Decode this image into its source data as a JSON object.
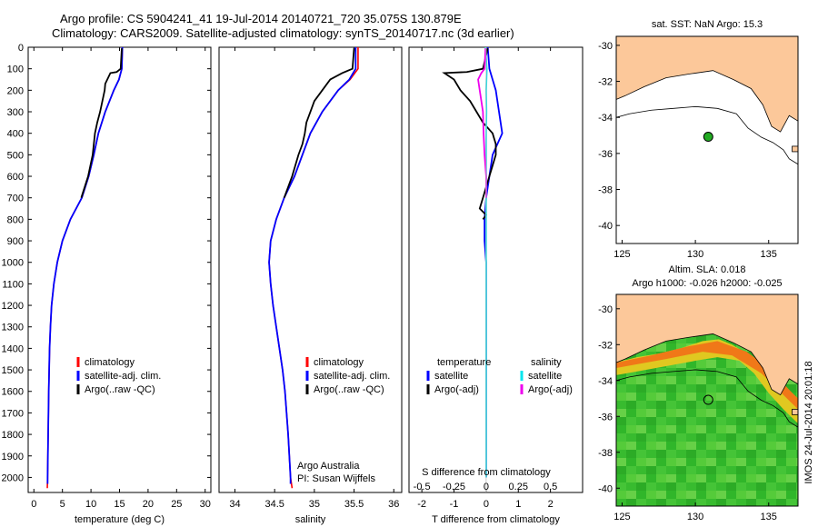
{
  "header": {
    "title_line1": "Argo profile: CS 5904241_41 19-Jul-2014 20140721_720 35.075S 130.879E",
    "title_line2": "Climatology: CARS2009. Satellite-adjusted climatology: synTS_20140717.nc (3d earlier)"
  },
  "colors": {
    "climatology": "#ff0000",
    "satellite": "#0000ff",
    "argo": "#000000",
    "sal_satellite": "#00e5ee",
    "sal_argo": "#ee00ee",
    "land": "#fcc89a"
  },
  "chart_data": [
    {
      "type": "line",
      "name": "temperature",
      "xlabel": "temperature (deg C)",
      "xlim": [
        -1,
        31
      ],
      "ylim": [
        2070,
        0
      ],
      "xticks": [
        0,
        5,
        10,
        15,
        20,
        25,
        30
      ],
      "yticks": [
        0,
        100,
        200,
        300,
        400,
        500,
        600,
        700,
        800,
        900,
        1000,
        1100,
        1200,
        1300,
        1400,
        1500,
        1600,
        1700,
        1800,
        1900,
        2000
      ],
      "legend": [
        "climatology",
        "satellite-adj. clim.",
        "Argo(..raw -QC)"
      ],
      "series": [
        {
          "name": "climatology",
          "color": "#ff0000",
          "depth": [
            0,
            100,
            150,
            200,
            300,
            400,
            500,
            600,
            700,
            800,
            900,
            1000,
            1100,
            1200,
            1300,
            1400,
            1600,
            1800,
            2000,
            2050
          ],
          "values": [
            15.5,
            15.4,
            14.9,
            14.0,
            12.5,
            11.3,
            10.5,
            9.6,
            8.4,
            6.4,
            5.0,
            4.1,
            3.5,
            3.1,
            2.9,
            2.75,
            2.6,
            2.5,
            2.4,
            2.35
          ]
        },
        {
          "name": "satellite-adj. clim.",
          "color": "#0000ff",
          "depth": [
            0,
            100,
            150,
            200,
            300,
            400,
            500,
            600,
            700,
            800,
            900,
            1000,
            1100,
            1200,
            1300,
            1400,
            1600,
            1800,
            2000,
            2030
          ],
          "values": [
            15.5,
            15.4,
            14.9,
            14.0,
            12.5,
            11.3,
            10.5,
            9.6,
            8.4,
            6.4,
            5.0,
            4.1,
            3.5,
            3.1,
            2.9,
            2.75,
            2.6,
            2.5,
            2.4,
            2.4
          ]
        },
        {
          "name": "Argo(..raw -QC)",
          "color": "#000000",
          "depth": [
            5,
            100,
            115,
            120,
            170,
            200,
            250,
            300,
            350,
            400,
            500,
            600,
            700
          ],
          "values": [
            15.4,
            15.2,
            14.5,
            13.4,
            12.5,
            12.4,
            12.0,
            11.6,
            11.1,
            10.7,
            10.3,
            9.5,
            8.3
          ]
        }
      ]
    },
    {
      "type": "line",
      "name": "salinity",
      "xlabel": "salinity",
      "xlim": [
        33.8,
        36.1
      ],
      "ylim": [
        2070,
        0
      ],
      "xticks": [
        34,
        34.5,
        35,
        35.5,
        36
      ],
      "legend": [
        "climatology",
        "satellite-adj. clim.",
        "Argo(..raw -QC)"
      ],
      "annotation_line1": "Argo Australia",
      "annotation_line2": "PI: Susan Wijffels",
      "series": [
        {
          "name": "climatology",
          "color": "#ff0000",
          "depth": [
            0,
            100,
            150,
            200,
            300,
            400,
            500,
            600,
            700,
            800,
            900,
            1000,
            1100,
            1200,
            1300,
            1400,
            1500,
            1600,
            1800,
            2000,
            2050
          ],
          "values": [
            35.55,
            35.55,
            35.45,
            35.3,
            35.1,
            34.95,
            34.85,
            34.75,
            34.62,
            34.52,
            34.45,
            34.43,
            34.45,
            34.48,
            34.52,
            34.56,
            34.6,
            34.63,
            34.67,
            34.7,
            34.72
          ]
        },
        {
          "name": "satellite-adj. clim.",
          "color": "#0000ff",
          "depth": [
            0,
            100,
            150,
            200,
            300,
            400,
            500,
            600,
            700,
            800,
            900,
            1000,
            1100,
            1200,
            1300,
            1400,
            1500,
            1600,
            1800,
            2000,
            2030
          ],
          "values": [
            35.52,
            35.52,
            35.44,
            35.3,
            35.1,
            34.95,
            34.85,
            34.75,
            34.62,
            34.52,
            34.45,
            34.43,
            34.45,
            34.48,
            34.52,
            34.56,
            34.6,
            34.63,
            34.67,
            34.7,
            34.7
          ]
        },
        {
          "name": "Argo(..raw -QC)",
          "color": "#000000",
          "depth": [
            5,
            100,
            120,
            150,
            200,
            250,
            300,
            350,
            400,
            450,
            500,
            600,
            700
          ],
          "values": [
            35.5,
            35.48,
            35.35,
            35.2,
            35.1,
            35.0,
            34.95,
            34.9,
            34.88,
            34.85,
            34.8,
            34.72,
            34.62
          ]
        }
      ]
    },
    {
      "type": "line",
      "name": "differences",
      "xlabel": "T difference from climatology",
      "xlabel_top": "S difference from climatology",
      "xlim": [
        -2.4,
        3.0
      ],
      "ylim": [
        2070,
        0
      ],
      "xticks": [
        -2,
        -1,
        0,
        1,
        2
      ],
      "xticks_s": [
        -0.5,
        -0.25,
        0,
        0.25,
        0.5
      ],
      "legend_temperature": [
        "temperature",
        "satellite",
        "Argo(-adj)"
      ],
      "legend_salinity": [
        "salinity",
        "satellite",
        "Argo(-adj)"
      ],
      "series": [
        {
          "name": "T satellite",
          "color": "#0000ff",
          "depth": [
            0,
            100,
            150,
            200,
            300,
            400,
            500,
            600,
            700,
            800,
            900,
            1000,
            1200,
            1400,
            1600,
            1800,
            2000
          ],
          "values": [
            0.05,
            0.1,
            0.2,
            0.3,
            0.4,
            0.5,
            0.2,
            0.1,
            0.0,
            -0.05,
            -0.05,
            0.0,
            0.0,
            0.0,
            0.0,
            0.0,
            0.0
          ]
        },
        {
          "name": "T Argo(-adj)",
          "color": "#000000",
          "depth": [
            5,
            100,
            115,
            120,
            150,
            200,
            250,
            300,
            350,
            400,
            450,
            500,
            550,
            600,
            650,
            700,
            750,
            780,
            800
          ],
          "values": [
            0.05,
            -0.1,
            -0.6,
            -1.3,
            -1.0,
            -0.8,
            -0.5,
            -0.3,
            -0.1,
            0.2,
            0.3,
            0.3,
            0.2,
            0.1,
            0.0,
            -0.1,
            -0.2,
            0.0,
            -0.1
          ]
        },
        {
          "name": "S satellite",
          "color": "#00e5ee",
          "depth": [
            0,
            50,
            100,
            150,
            200,
            300,
            400,
            500,
            600,
            800,
            1000,
            1200,
            1400,
            1600,
            1800,
            2000
          ],
          "values": [
            -0.02,
            0.0,
            0.02,
            0.01,
            0.0,
            0.01,
            0.0,
            0.0,
            0.0,
            0.0,
            0.0,
            0.0,
            0.0,
            0.0,
            0.0,
            0.0
          ]
        },
        {
          "name": "S Argo(-adj)",
          "color": "#ee00ee",
          "depth": [
            5,
            100,
            120,
            150,
            200,
            250,
            300,
            400,
            500,
            600,
            700
          ],
          "values": [
            -0.02,
            -0.05,
            -0.15,
            -0.25,
            -0.2,
            -0.15,
            -0.1,
            -0.08,
            -0.05,
            0.0,
            0.0
          ]
        }
      ]
    },
    {
      "type": "map",
      "name": "sst-map",
      "title": "sat. SST: NaN Argo: 15.3",
      "xlim": [
        124.6,
        137.0
      ],
      "ylim": [
        -41.0,
        -29.5
      ],
      "xticks": [
        125,
        130,
        135
      ],
      "yticks": [
        -30,
        -32,
        -34,
        -36,
        -38,
        -40
      ],
      "float": {
        "lon": 130.879,
        "lat": -35.075
      }
    },
    {
      "type": "map",
      "name": "sla-map",
      "title_line1": "Altim. SLA: 0.018",
      "title_line2": "Argo h1000: -0.026 h2000: -0.025",
      "xlim": [
        124.6,
        137.0
      ],
      "ylim": [
        -41.0,
        -29.2
      ],
      "xticks": [
        125,
        130,
        135
      ],
      "yticks": [
        -30,
        -32,
        -34,
        -36,
        -38,
        -40
      ],
      "float": {
        "lon": 130.879,
        "lat": -35.075
      }
    }
  ],
  "footer": {
    "imos_stamp": "IMOS 24-Jul-2014 20:01:18"
  }
}
